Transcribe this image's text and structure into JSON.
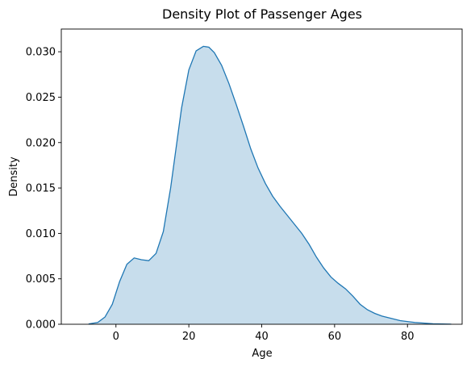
{
  "chart_data": {
    "type": "area",
    "title": "Density Plot of Passenger Ages",
    "xlabel": "Age",
    "ylabel": "Density",
    "xlim": [
      -15,
      95
    ],
    "ylim": [
      0,
      0.0325
    ],
    "x_ticks": [
      0,
      20,
      40,
      60,
      80
    ],
    "x_tick_labels": [
      "0",
      "20",
      "40",
      "60",
      "80"
    ],
    "y_ticks": [
      0,
      0.005,
      0.01,
      0.015,
      0.02,
      0.025,
      0.03
    ],
    "y_tick_labels": [
      "0.000",
      "0.005",
      "0.010",
      "0.015",
      "0.020",
      "0.025",
      "0.030"
    ],
    "grid": false,
    "colors": {
      "line": "#1f77b4",
      "fill": "#1f77b4"
    },
    "series": [
      {
        "x": [
          -7.5,
          -5,
          -3,
          -1,
          1,
          3,
          5,
          7,
          9,
          11,
          13,
          15,
          16.5,
          18,
          20,
          22,
          24,
          25.5,
          27,
          29,
          31,
          33,
          35,
          37,
          39,
          41,
          43,
          45,
          47,
          49,
          51,
          53,
          55,
          57,
          59,
          61,
          63,
          65,
          67,
          69,
          71,
          73,
          75,
          78,
          82,
          87,
          92
        ],
        "y": [
          3e-05,
          0.0002,
          0.0008,
          0.0022,
          0.0047,
          0.0066,
          0.0073,
          0.0071,
          0.007,
          0.0078,
          0.0102,
          0.015,
          0.0194,
          0.0238,
          0.028,
          0.0301,
          0.0306,
          0.0305,
          0.0299,
          0.0285,
          0.0265,
          0.0242,
          0.0218,
          0.0193,
          0.0172,
          0.0155,
          0.0141,
          0.013,
          0.012,
          0.011,
          0.01,
          0.0088,
          0.0074,
          0.0062,
          0.0052,
          0.0045,
          0.0039,
          0.0031,
          0.0022,
          0.0016,
          0.0012,
          0.0009,
          0.0007,
          0.0004,
          0.0002,
          5e-05,
          1e-05
        ]
      }
    ]
  }
}
